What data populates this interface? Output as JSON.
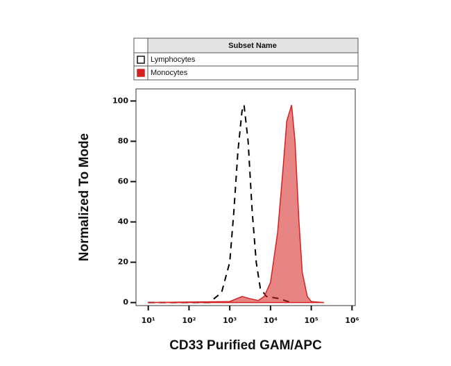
{
  "chart_data": {
    "type": "line",
    "legend_title": "Subset Name",
    "x_label": "CD33 Purified GAM/APC",
    "y_label": "Normalized To Mode",
    "x_scale": "log",
    "xlim": [
      5,
      1200000
    ],
    "xticks": [
      {
        "value": 10,
        "label": "10¹"
      },
      {
        "value": 100,
        "label": "10²"
      },
      {
        "value": 1000,
        "label": "10³"
      },
      {
        "value": 10000,
        "label": "10⁴"
      },
      {
        "value": 100000,
        "label": "10⁵"
      },
      {
        "value": 1000000,
        "label": "10⁶"
      }
    ],
    "ylim": [
      -1.5,
      106
    ],
    "yticks": [
      0,
      20,
      40,
      60,
      80,
      100
    ],
    "series": [
      {
        "name": "Lymphocytes",
        "color": "#000000",
        "style": "dashed",
        "x": [
          10,
          316,
          631,
          1000,
          1259,
          1585,
          1995,
          2239,
          2818,
          3548,
          4467,
          5623,
          7943,
          15849,
          31623
        ],
        "values": [
          0,
          0,
          5,
          20,
          45,
          75,
          95,
          98,
          80,
          45,
          20,
          7,
          3,
          2,
          0
        ]
      },
      {
        "name": "Monocytes",
        "color": "#d42020",
        "style": "filled",
        "x": [
          10,
          1000,
          2000,
          3000,
          5000,
          7000,
          10000,
          15000,
          20000,
          25000,
          33000,
          40000,
          50000,
          60000,
          80000,
          100000,
          200000
        ],
        "values": [
          0,
          0.5,
          3,
          2,
          1,
          3,
          10,
          35,
          65,
          90,
          98,
          80,
          40,
          15,
          3,
          0.5,
          0
        ]
      }
    ]
  }
}
